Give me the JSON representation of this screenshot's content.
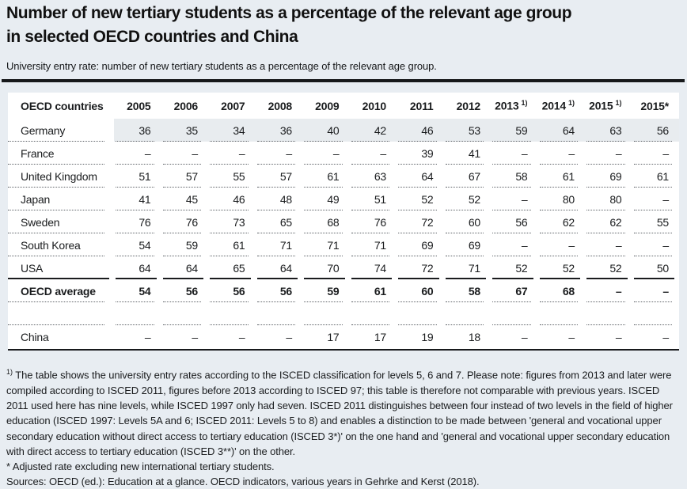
{
  "page": {
    "title_line1": "Number of new tertiary students as a percentage of the relevant age group",
    "title_line2": "in selected OECD countries and China",
    "subtitle": "University entry rate: number of new tertiary students as a percentage of the relevant age group."
  },
  "chart_data": {
    "type": "table",
    "title": "Number of new tertiary students as a percentage of the relevant age group in selected OECD countries and China",
    "label_header": "OECD countries",
    "columns": [
      {
        "year": "2005",
        "sup": ""
      },
      {
        "year": "2006",
        "sup": ""
      },
      {
        "year": "2007",
        "sup": ""
      },
      {
        "year": "2008",
        "sup": ""
      },
      {
        "year": "2009",
        "sup": ""
      },
      {
        "year": "2010",
        "sup": ""
      },
      {
        "year": "2011",
        "sup": ""
      },
      {
        "year": "2012",
        "sup": ""
      },
      {
        "year": "2013",
        "sup": "1)"
      },
      {
        "year": "2014",
        "sup": "1)"
      },
      {
        "year": "2015",
        "sup": "1)"
      },
      {
        "year": "2015*",
        "sup": ""
      }
    ],
    "rows": [
      {
        "label": "Germany",
        "highlight": true,
        "values": [
          "36",
          "35",
          "34",
          "36",
          "40",
          "42",
          "46",
          "53",
          "59",
          "64",
          "63",
          "56"
        ]
      },
      {
        "label": "France",
        "values": [
          "–",
          "–",
          "–",
          "–",
          "–",
          "–",
          "39",
          "41",
          "–",
          "–",
          "–",
          "–"
        ]
      },
      {
        "label": "United Kingdom",
        "values": [
          "51",
          "57",
          "55",
          "57",
          "61",
          "63",
          "64",
          "67",
          "58",
          "61",
          "69",
          "61"
        ]
      },
      {
        "label": "Japan",
        "values": [
          "41",
          "45",
          "46",
          "48",
          "49",
          "51",
          "52",
          "52",
          "–",
          "80",
          "80",
          "–"
        ]
      },
      {
        "label": "Sweden",
        "values": [
          "76",
          "76",
          "73",
          "65",
          "68",
          "76",
          "72",
          "60",
          "56",
          "62",
          "62",
          "55"
        ]
      },
      {
        "label": "South Korea",
        "values": [
          "54",
          "59",
          "61",
          "71",
          "71",
          "71",
          "69",
          "69",
          "–",
          "–",
          "–",
          "–"
        ]
      },
      {
        "label": "USA",
        "solid_bottom": true,
        "values": [
          "64",
          "64",
          "65",
          "64",
          "70",
          "74",
          "72",
          "71",
          "52",
          "52",
          "52",
          "50"
        ]
      },
      {
        "label": "OECD average",
        "bold": true,
        "values": [
          "54",
          "56",
          "56",
          "56",
          "59",
          "61",
          "60",
          "58",
          "67",
          "68",
          "–",
          "–"
        ]
      },
      {
        "label": "",
        "spacer": true,
        "values": [
          "",
          "",
          "",
          "",
          "",
          "",
          "",
          "",
          "",
          "",
          "",
          ""
        ]
      },
      {
        "label": "China",
        "no_border": true,
        "last": true,
        "values": [
          "–",
          "–",
          "–",
          "–",
          "17",
          "17",
          "19",
          "18",
          "–",
          "–",
          "–",
          "–"
        ]
      }
    ]
  },
  "footnotes": {
    "note1_marker": "1)",
    "note1": "The table shows the university entry rates according to the ISCED classification for levels 5, 6 and 7. Please note: figures from 2013 and later were compiled according to ISCED 2011, figures before 2013 according to ISCED 97; this table is therefore not comparable with previous years. ISCED 2011 used here has nine levels, while ISCED 1997 only had seven. ISCED 2011 distinguishes between four instead of two levels in the field of higher education (ISCED 1997: Levels 5A and 6; ISCED 2011: Levels 5 to 8) and enables a distinction to be made between 'general and vocational upper secondary education without direct access to tertiary education (ISCED 3*)' on the one hand and 'general and vocational upper secondary education with direct access to tertiary education (ISCED 3**)' on the other.",
    "note2": "* Adjusted rate excluding new international tertiary students.",
    "sources": "Sources: OECD (ed.): Education at a glance. OECD indicators, various years in Gehrke and Kerst (2018)."
  },
  "colors": {
    "page_background": "#e8edf2",
    "table_background": "#ffffff",
    "highlight_row": "#e8ecef",
    "text": "#17191b"
  }
}
